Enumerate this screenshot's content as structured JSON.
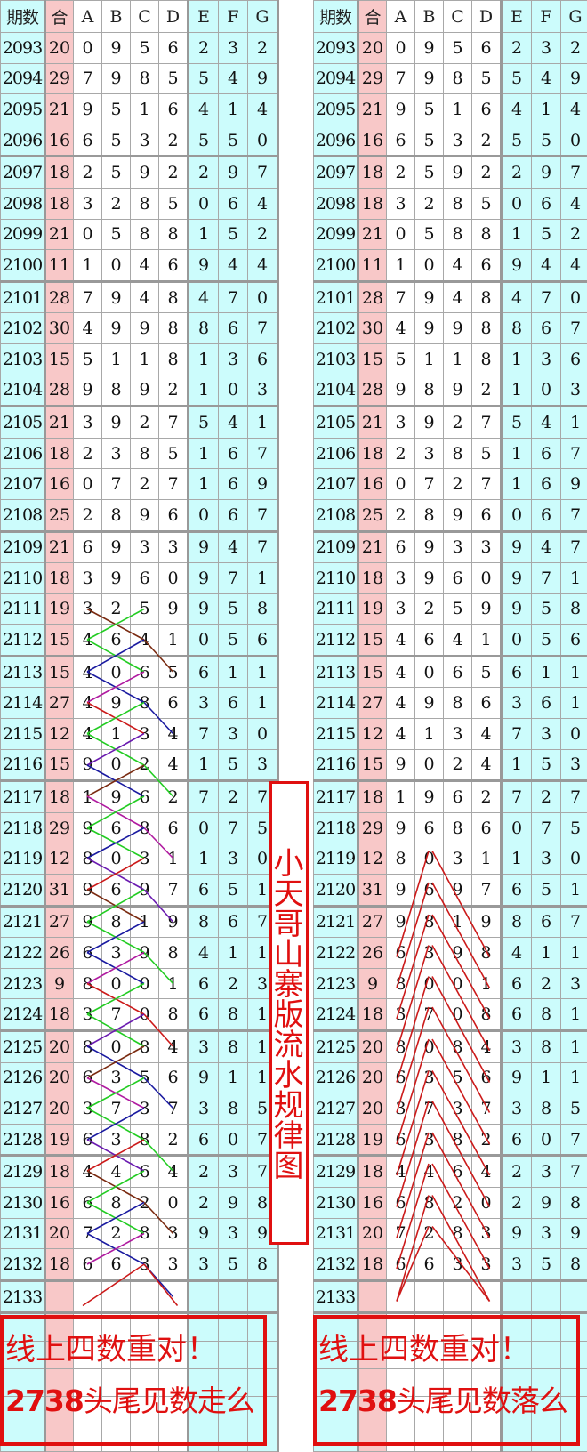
{
  "headers": [
    "期数",
    "合",
    "A",
    "B",
    "C",
    "D",
    "E",
    "F",
    "G"
  ],
  "rows": [
    [
      "2093",
      "20",
      "0",
      "9",
      "5",
      "6",
      "2",
      "3",
      "2"
    ],
    [
      "2094",
      "29",
      "7",
      "9",
      "8",
      "5",
      "5",
      "4",
      "9"
    ],
    [
      "2095",
      "21",
      "9",
      "5",
      "1",
      "6",
      "4",
      "1",
      "4"
    ],
    [
      "2096",
      "16",
      "6",
      "5",
      "3",
      "2",
      "5",
      "5",
      "0"
    ],
    [
      "2097",
      "18",
      "2",
      "5",
      "9",
      "2",
      "2",
      "9",
      "7"
    ],
    [
      "2098",
      "18",
      "3",
      "2",
      "8",
      "5",
      "0",
      "6",
      "4"
    ],
    [
      "2099",
      "21",
      "0",
      "5",
      "8",
      "8",
      "1",
      "5",
      "2"
    ],
    [
      "2100",
      "11",
      "1",
      "0",
      "4",
      "6",
      "9",
      "4",
      "4"
    ],
    [
      "2101",
      "28",
      "7",
      "9",
      "4",
      "8",
      "4",
      "7",
      "0"
    ],
    [
      "2102",
      "30",
      "4",
      "9",
      "9",
      "8",
      "8",
      "6",
      "7"
    ],
    [
      "2103",
      "15",
      "5",
      "1",
      "1",
      "8",
      "1",
      "3",
      "6"
    ],
    [
      "2104",
      "28",
      "9",
      "8",
      "9",
      "2",
      "1",
      "0",
      "3"
    ],
    [
      "2105",
      "21",
      "3",
      "9",
      "2",
      "7",
      "5",
      "4",
      "1"
    ],
    [
      "2106",
      "18",
      "2",
      "3",
      "8",
      "5",
      "1",
      "6",
      "7"
    ],
    [
      "2107",
      "16",
      "0",
      "7",
      "2",
      "7",
      "1",
      "6",
      "9"
    ],
    [
      "2108",
      "25",
      "2",
      "8",
      "9",
      "6",
      "0",
      "6",
      "7"
    ],
    [
      "2109",
      "21",
      "6",
      "9",
      "3",
      "3",
      "9",
      "4",
      "7"
    ],
    [
      "2110",
      "18",
      "3",
      "9",
      "6",
      "0",
      "9",
      "7",
      "1"
    ],
    [
      "2111",
      "19",
      "3",
      "2",
      "5",
      "9",
      "9",
      "5",
      "8"
    ],
    [
      "2112",
      "15",
      "4",
      "6",
      "4",
      "1",
      "0",
      "5",
      "6"
    ],
    [
      "2113",
      "15",
      "4",
      "0",
      "6",
      "5",
      "6",
      "1",
      "1"
    ],
    [
      "2114",
      "27",
      "4",
      "9",
      "8",
      "6",
      "3",
      "6",
      "1"
    ],
    [
      "2115",
      "12",
      "4",
      "1",
      "3",
      "4",
      "7",
      "3",
      "0"
    ],
    [
      "2116",
      "15",
      "9",
      "0",
      "2",
      "4",
      "1",
      "5",
      "3"
    ],
    [
      "2117",
      "18",
      "1",
      "9",
      "6",
      "2",
      "7",
      "2",
      "7"
    ],
    [
      "2118",
      "29",
      "9",
      "6",
      "8",
      "6",
      "0",
      "7",
      "5"
    ],
    [
      "2119",
      "12",
      "8",
      "0",
      "3",
      "1",
      "1",
      "3",
      "0"
    ],
    [
      "2120",
      "31",
      "9",
      "6",
      "9",
      "7",
      "6",
      "5",
      "1"
    ],
    [
      "2121",
      "27",
      "9",
      "8",
      "1",
      "9",
      "8",
      "6",
      "7"
    ],
    [
      "2122",
      "26",
      "6",
      "3",
      "9",
      "8",
      "4",
      "1",
      "1"
    ],
    [
      "2123",
      "9",
      "8",
      "0",
      "0",
      "1",
      "6",
      "2",
      "3"
    ],
    [
      "2124",
      "18",
      "3",
      "7",
      "0",
      "8",
      "6",
      "8",
      "1"
    ],
    [
      "2125",
      "20",
      "8",
      "0",
      "8",
      "4",
      "3",
      "8",
      "1"
    ],
    [
      "2126",
      "20",
      "6",
      "3",
      "5",
      "6",
      "9",
      "1",
      "1"
    ],
    [
      "2127",
      "20",
      "3",
      "7",
      "3",
      "7",
      "3",
      "8",
      "5"
    ],
    [
      "2128",
      "19",
      "6",
      "3",
      "8",
      "2",
      "6",
      "0",
      "7"
    ],
    [
      "2129",
      "18",
      "4",
      "4",
      "6",
      "4",
      "2",
      "3",
      "7"
    ],
    [
      "2130",
      "16",
      "6",
      "8",
      "2",
      "0",
      "2",
      "9",
      "8"
    ],
    [
      "2131",
      "20",
      "7",
      "2",
      "8",
      "3",
      "9",
      "3",
      "9"
    ],
    [
      "2132",
      "18",
      "6",
      "6",
      "3",
      "3",
      "3",
      "5",
      "8"
    ],
    [
      "2133",
      "",
      "",
      "",
      "",
      "",
      "",
      "",
      ""
    ]
  ],
  "banner": "小天哥山寨版流水规律图",
  "left_footer": {
    "line1": "线上四数重对！",
    "line2_num": "2738",
    "line2_text": "头尾见数走么"
  },
  "right_footer": {
    "line1": "线上四数重对！",
    "line2_num": "2738",
    "line2_text": "头尾见数落么"
  },
  "colors": {
    "period_col": "#ccfcfc",
    "sum_col": "#f8c8c8",
    "efg_cols": "#ccfcfc",
    "accent_red": "#e01010"
  }
}
